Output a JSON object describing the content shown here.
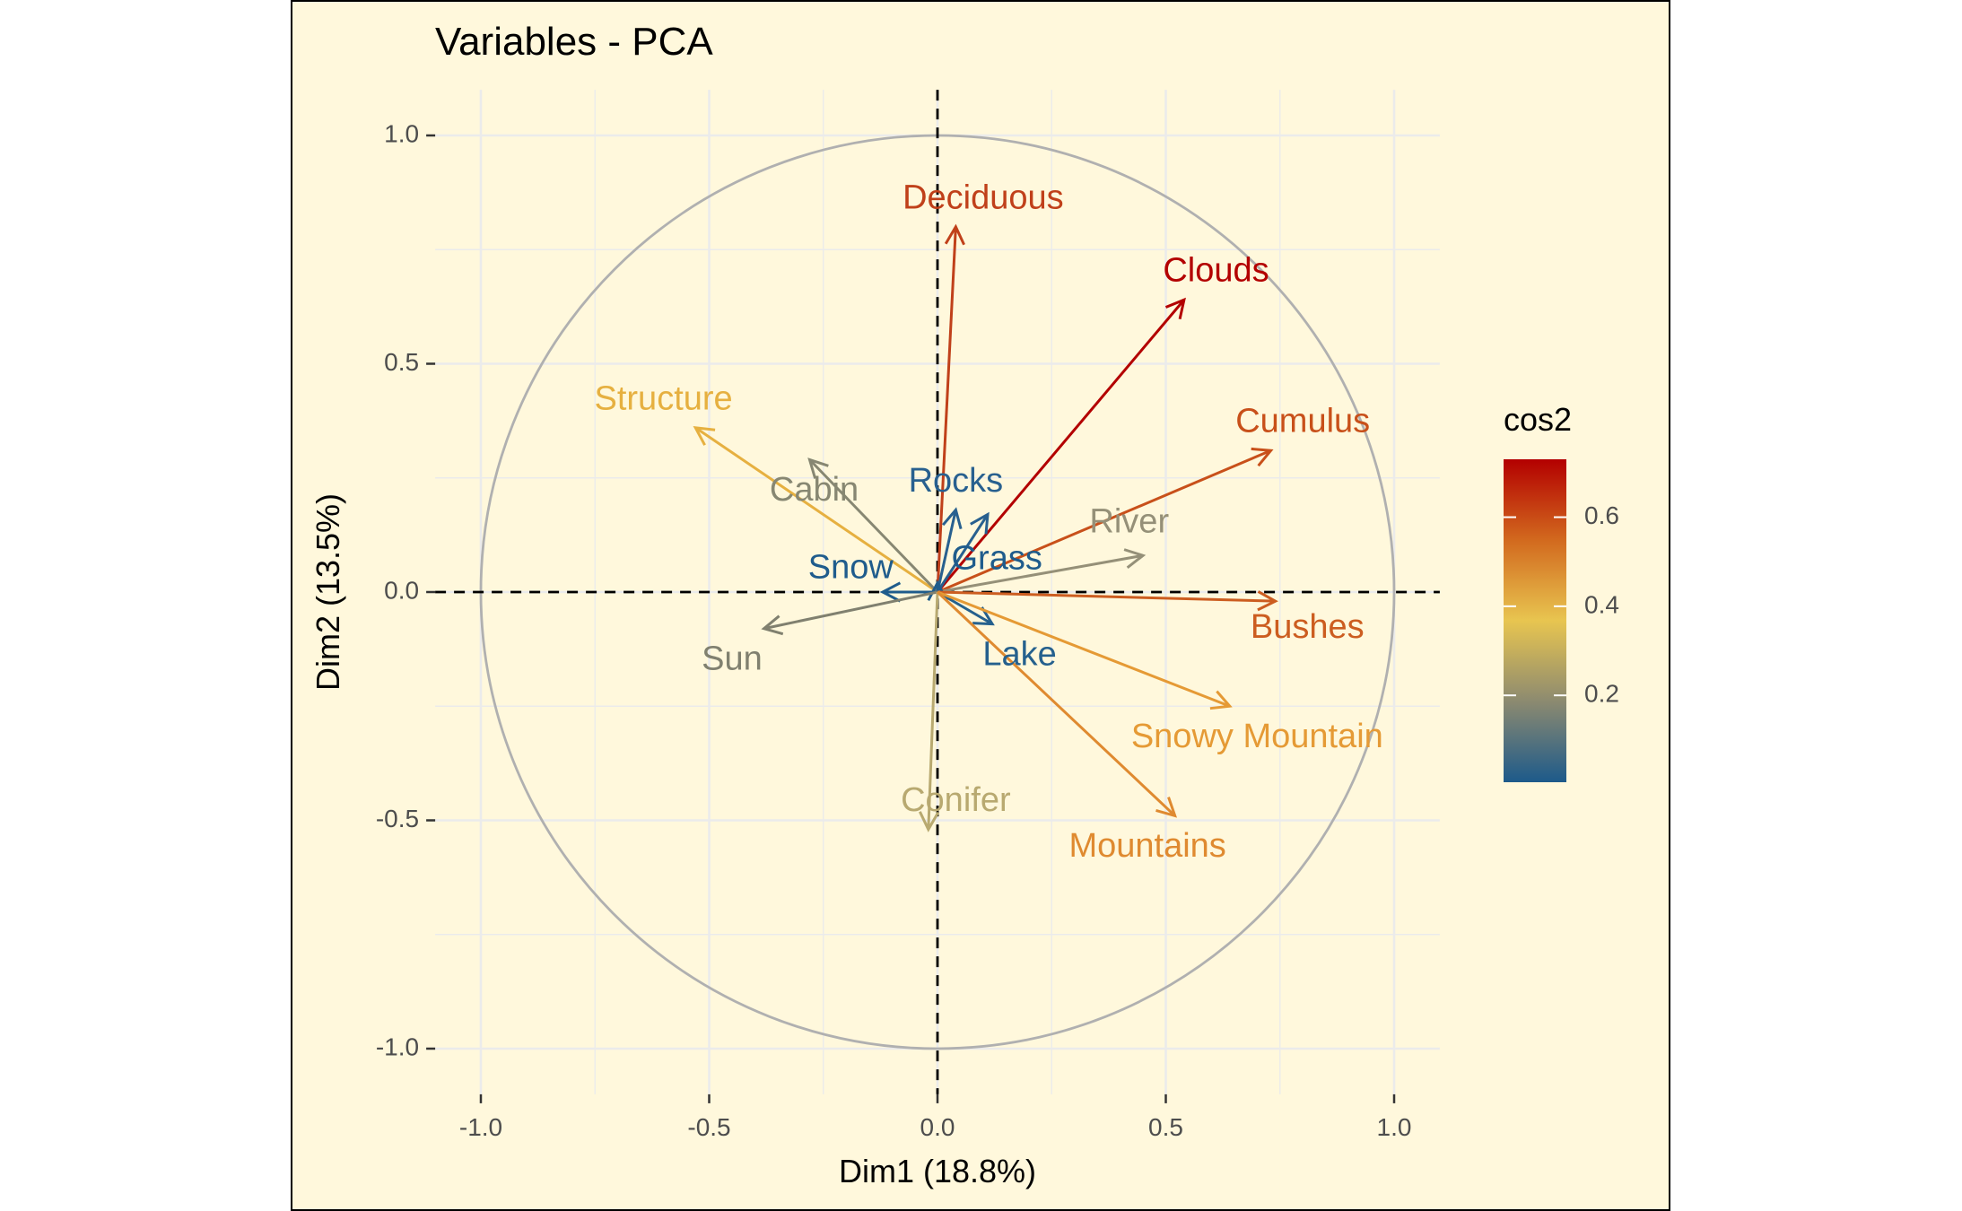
{
  "chart_data": {
    "type": "scatter",
    "subtype": "pca-variable-correlation-circle",
    "title": "Variables - PCA",
    "xlabel": "Dim1 (18.8%)",
    "ylabel": "Dim2 (13.5%)",
    "xlim": [
      -1.1,
      1.1
    ],
    "ylim": [
      -1.1,
      1.1
    ],
    "x_ticks": [
      -1.0,
      -0.5,
      0.0,
      0.5,
      1.0
    ],
    "x_tick_labels": [
      "-1.0",
      "-0.5",
      "0.0",
      "0.5",
      "1.0"
    ],
    "y_ticks": [
      -1.0,
      -0.5,
      0.0,
      0.5,
      1.0
    ],
    "y_tick_labels": [
      "-1.0",
      "-0.5",
      "0.0",
      "0.5",
      "1.0"
    ],
    "grid": true,
    "unit_circle": true,
    "reference_lines": [
      "x=0 dashed",
      "y=0 dashed"
    ],
    "background": "#fff8dc",
    "legend": {
      "title": "cos2",
      "placement": "right",
      "tick_values": [
        0.2,
        0.4,
        0.6
      ],
      "tick_labels": [
        "0.2",
        "0.4",
        "0.6"
      ],
      "range": [
        0.005,
        0.73
      ],
      "gradient": [
        "#1d5a8a",
        "#8c8a70",
        "#e8c550",
        "#d2691e",
        "#b30000"
      ]
    },
    "variables": [
      {
        "label": "Deciduous",
        "x": 0.04,
        "y": 0.8,
        "cos2": 0.64,
        "color": "#c0401a",
        "label_x": 0.1,
        "label_y": 0.86
      },
      {
        "label": "Clouds",
        "x": 0.54,
        "y": 0.64,
        "cos2": 0.7,
        "color": "#b30000",
        "label_x": 0.61,
        "label_y": 0.7
      },
      {
        "label": "Cumulus",
        "x": 0.73,
        "y": 0.31,
        "cos2": 0.63,
        "color": "#c8501a",
        "label_x": 0.8,
        "label_y": 0.37
      },
      {
        "label": "Structure",
        "x": -0.53,
        "y": 0.36,
        "cos2": 0.41,
        "color": "#e6b040",
        "label_x": -0.6,
        "label_y": 0.42
      },
      {
        "label": "Cabin",
        "x": -0.28,
        "y": 0.29,
        "cos2": 0.16,
        "color": "#878772",
        "label_x": -0.27,
        "label_y": 0.22
      },
      {
        "label": "Rocks",
        "x": 0.04,
        "y": 0.18,
        "cos2": 0.04,
        "color": "#28608f",
        "label_x": 0.04,
        "label_y": 0.24
      },
      {
        "label": "Rocks",
        "x": 0.11,
        "y": 0.17,
        "cos2": 0.04,
        "color": "#28608f",
        "label_x": null,
        "label_y": null
      },
      {
        "label": "River",
        "x": 0.45,
        "y": 0.08,
        "cos2": 0.21,
        "color": "#959078",
        "label_x": 0.42,
        "label_y": 0.15
      },
      {
        "label": "Grass",
        "x": 0.0,
        "y": 0.02,
        "cos2": 0.02,
        "color": "#1f5c8c",
        "label_x": 0.13,
        "label_y": 0.07
      },
      {
        "label": "Snow",
        "x": -0.12,
        "y": 0.0,
        "cos2": 0.02,
        "color": "#1f5c8c",
        "label_x": -0.19,
        "label_y": 0.05
      },
      {
        "label": "Bushes",
        "x": 0.74,
        "y": -0.02,
        "cos2": 0.58,
        "color": "#cc5d20",
        "label_x": 0.81,
        "label_y": -0.08
      },
      {
        "label": "Sun",
        "x": -0.38,
        "y": -0.08,
        "cos2": 0.16,
        "color": "#80806f",
        "label_x": -0.45,
        "label_y": -0.15
      },
      {
        "label": "Lake",
        "x": 0.12,
        "y": -0.07,
        "cos2": 0.03,
        "color": "#25608d",
        "label_x": 0.18,
        "label_y": -0.14
      },
      {
        "label": "Snowy Mountain",
        "x": 0.64,
        "y": -0.25,
        "cos2": 0.45,
        "color": "#e59a35",
        "label_x": 0.7,
        "label_y": -0.32
      },
      {
        "label": "Conifer",
        "x": -0.02,
        "y": -0.52,
        "cos2": 0.28,
        "color": "#b8a970",
        "label_x": 0.04,
        "label_y": -0.46
      },
      {
        "label": "Mountains",
        "x": 0.52,
        "y": -0.49,
        "cos2": 0.5,
        "color": "#df8a30",
        "label_x": 0.46,
        "label_y": -0.56
      }
    ]
  }
}
